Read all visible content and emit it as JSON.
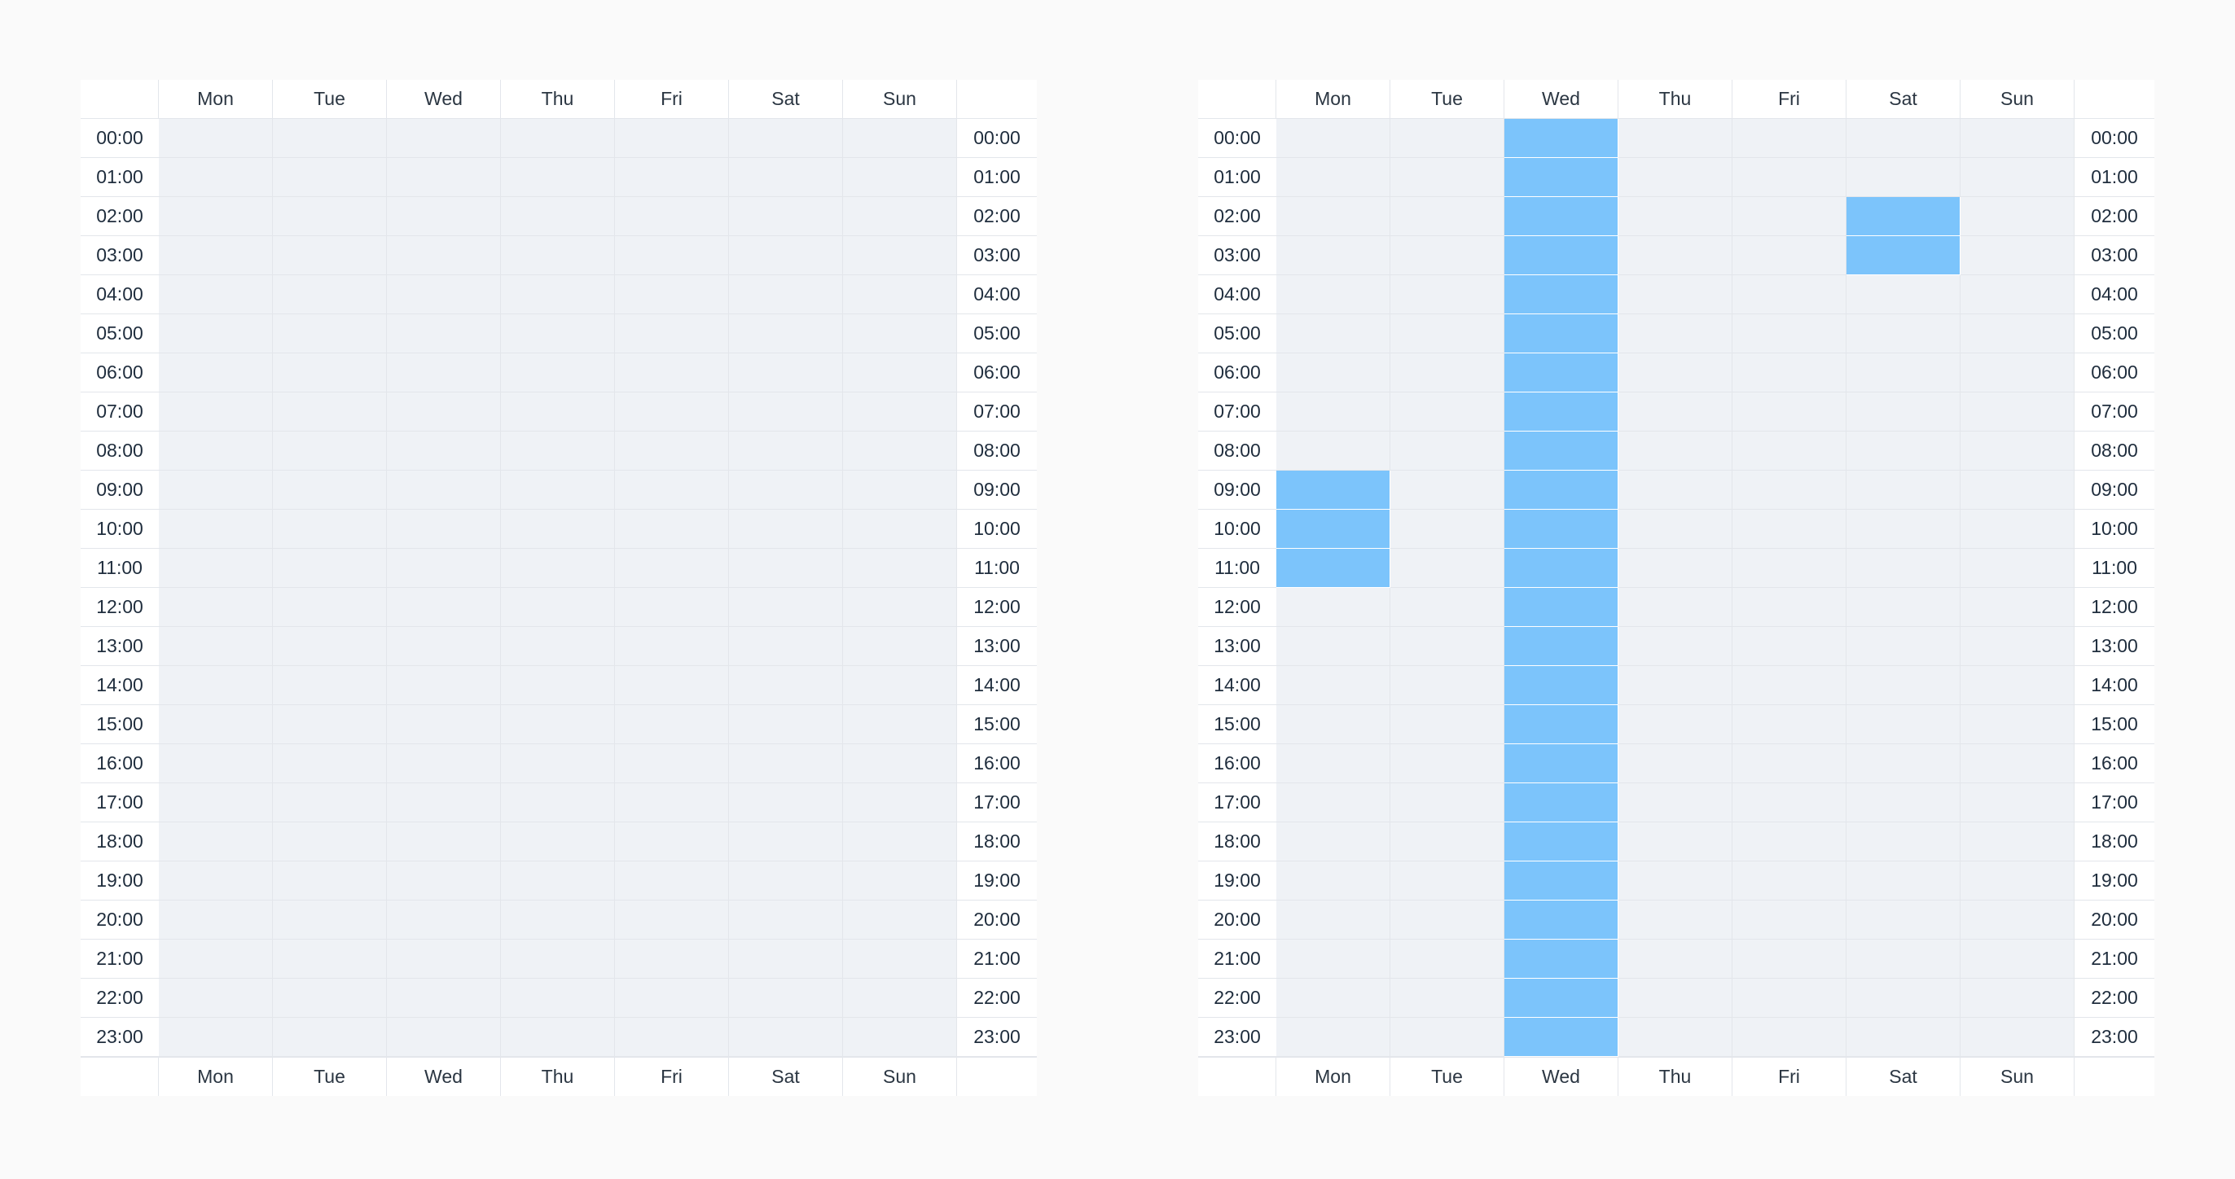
{
  "days": [
    "Mon",
    "Tue",
    "Wed",
    "Thu",
    "Fri",
    "Sat",
    "Sun"
  ],
  "hours": [
    "00:00",
    "01:00",
    "02:00",
    "03:00",
    "04:00",
    "05:00",
    "06:00",
    "07:00",
    "08:00",
    "09:00",
    "10:00",
    "11:00",
    "12:00",
    "13:00",
    "14:00",
    "15:00",
    "16:00",
    "17:00",
    "18:00",
    "19:00",
    "20:00",
    "21:00",
    "22:00",
    "23:00"
  ],
  "colors": {
    "selected": "#7cc4fb",
    "empty": "#eff2f6",
    "grid": "#e3e6eb"
  },
  "schedules": [
    {
      "selected": []
    },
    {
      "selected": [
        [
          "Wed",
          "00:00"
        ],
        [
          "Wed",
          "01:00"
        ],
        [
          "Wed",
          "02:00"
        ],
        [
          "Wed",
          "03:00"
        ],
        [
          "Wed",
          "04:00"
        ],
        [
          "Wed",
          "05:00"
        ],
        [
          "Wed",
          "06:00"
        ],
        [
          "Wed",
          "07:00"
        ],
        [
          "Wed",
          "08:00"
        ],
        [
          "Wed",
          "09:00"
        ],
        [
          "Wed",
          "10:00"
        ],
        [
          "Wed",
          "11:00"
        ],
        [
          "Wed",
          "12:00"
        ],
        [
          "Wed",
          "13:00"
        ],
        [
          "Wed",
          "14:00"
        ],
        [
          "Wed",
          "15:00"
        ],
        [
          "Wed",
          "16:00"
        ],
        [
          "Wed",
          "17:00"
        ],
        [
          "Wed",
          "18:00"
        ],
        [
          "Wed",
          "19:00"
        ],
        [
          "Wed",
          "20:00"
        ],
        [
          "Wed",
          "21:00"
        ],
        [
          "Wed",
          "22:00"
        ],
        [
          "Wed",
          "23:00"
        ],
        [
          "Sat",
          "02:00"
        ],
        [
          "Sat",
          "03:00"
        ],
        [
          "Mon",
          "09:00"
        ],
        [
          "Mon",
          "10:00"
        ],
        [
          "Mon",
          "11:00"
        ]
      ]
    }
  ]
}
